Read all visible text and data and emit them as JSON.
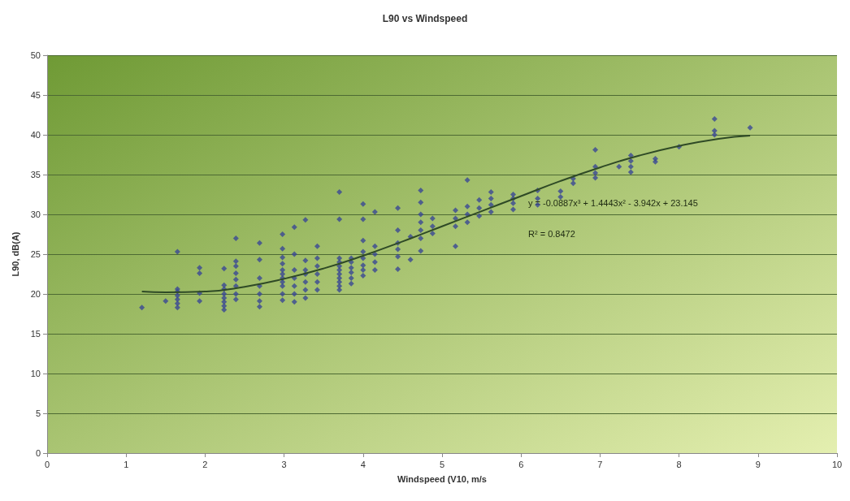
{
  "chart_data": {
    "type": "scatter",
    "title": "L90 vs Windspeed",
    "xlabel": "Windspeed (V10, m/s",
    "ylabel": "L90, dB(A)",
    "xlim": [
      0,
      10
    ],
    "xticks": [
      0,
      1,
      2,
      3,
      4,
      5,
      6,
      7,
      8,
      9,
      10
    ],
    "ylim": [
      0,
      50
    ],
    "yticks": [
      0,
      5,
      10,
      15,
      20,
      25,
      30,
      35,
      40,
      45,
      50
    ],
    "grid": "y",
    "annotations": [
      "y = -0.0887x³ + 1.4443x² - 3.942x + 23.145",
      "R² = 0.8472"
    ],
    "series": [
      {
        "color": "#3a4795",
        "marker": "diamond",
        "x": [
          1.2,
          1.5,
          1.65,
          1.65,
          1.65,
          1.65,
          1.65,
          1.65,
          1.65,
          1.93,
          1.93,
          1.93,
          1.93,
          2.24,
          2.24,
          2.24,
          2.24,
          2.24,
          2.24,
          2.24,
          2.24,
          2.39,
          2.39,
          2.39,
          2.39,
          2.39,
          2.39,
          2.39,
          2.39,
          2.69,
          2.69,
          2.69,
          2.69,
          2.69,
          2.69,
          2.69,
          2.98,
          2.98,
          2.98,
          2.98,
          2.98,
          2.98,
          2.98,
          2.98,
          2.98,
          2.98,
          2.98,
          3.13,
          3.13,
          3.13,
          3.13,
          3.13,
          3.13,
          3.13,
          3.27,
          3.27,
          3.27,
          3.27,
          3.27,
          3.27,
          3.27,
          3.42,
          3.42,
          3.42,
          3.42,
          3.42,
          3.42,
          3.7,
          3.7,
          3.7,
          3.7,
          3.7,
          3.7,
          3.7,
          3.7,
          3.7,
          3.7,
          3.7,
          3.85,
          3.85,
          3.85,
          3.85,
          3.85,
          3.85,
          4.0,
          4.0,
          4.0,
          4.0,
          4.0,
          4.0,
          4.0,
          4.0,
          4.15,
          4.15,
          4.15,
          4.15,
          4.15,
          4.44,
          4.44,
          4.44,
          4.44,
          4.44,
          4.44,
          4.6,
          4.6,
          4.73,
          4.73,
          4.73,
          4.73,
          4.73,
          4.73,
          4.73,
          4.88,
          4.88,
          4.88,
          5.17,
          5.17,
          5.17,
          5.17,
          5.32,
          5.32,
          5.32,
          5.32,
          5.47,
          5.47,
          5.47,
          5.62,
          5.62,
          5.62,
          5.62,
          5.9,
          5.9,
          5.9,
          5.9,
          6.21,
          6.21,
          6.21,
          6.5,
          6.5,
          6.66,
          6.66,
          6.94,
          6.94,
          6.94,
          6.94,
          7.24,
          7.39,
          7.39,
          7.39,
          7.39,
          7.7,
          7.7,
          8.0,
          8.45,
          8.45,
          8.45,
          8.9
        ],
        "values": [
          18.3,
          19.1,
          18.3,
          18.8,
          19.3,
          19.8,
          20.3,
          20.6,
          25.3,
          19.1,
          20.1,
          22.6,
          23.3,
          18.0,
          18.5,
          19.0,
          19.5,
          20.0,
          20.6,
          21.1,
          23.2,
          19.3,
          20.0,
          21.0,
          21.8,
          22.6,
          23.5,
          24.1,
          27.0,
          18.4,
          19.1,
          20.0,
          21.0,
          22.0,
          24.3,
          26.4,
          19.2,
          20.0,
          21.0,
          21.5,
          22.0,
          22.5,
          23.0,
          23.8,
          24.6,
          25.7,
          27.5,
          19.0,
          20.0,
          21.0,
          22.0,
          23.0,
          25.0,
          28.4,
          19.5,
          20.5,
          21.5,
          22.5,
          23.0,
          24.2,
          29.3,
          20.5,
          21.5,
          22.5,
          23.5,
          24.5,
          26.0,
          20.5,
          21.0,
          21.5,
          22.0,
          22.5,
          23.0,
          23.5,
          24.0,
          24.5,
          29.4,
          32.8,
          21.3,
          22.0,
          22.7,
          23.3,
          24.0,
          24.5,
          22.3,
          23.0,
          23.6,
          24.5,
          25.3,
          26.7,
          29.4,
          31.3,
          23.0,
          24.0,
          25.0,
          26.0,
          30.3,
          23.1,
          24.7,
          25.6,
          26.4,
          28.0,
          30.8,
          24.3,
          27.2,
          25.4,
          27.0,
          28.0,
          29.0,
          30.0,
          31.5,
          33.0,
          27.6,
          28.5,
          29.5,
          26.0,
          28.5,
          29.5,
          30.5,
          29.0,
          30.0,
          31.0,
          34.3,
          29.8,
          30.8,
          31.8,
          30.3,
          31.2,
          32.0,
          32.8,
          30.6,
          31.4,
          32.0,
          32.5,
          31.2,
          32.0,
          33.0,
          32.2,
          32.9,
          33.9,
          34.5,
          34.6,
          35.2,
          36.0,
          38.1,
          36.0,
          35.3,
          36.0,
          36.7,
          37.4,
          36.6,
          37.0,
          38.5,
          40.0,
          40.5,
          42.0,
          40.9
        ]
      },
      {
        "type": "line",
        "color": "#2f4a26",
        "marker": "none",
        "line_style": "solid",
        "x": [
          1.2,
          1.5,
          2,
          2.5,
          3,
          3.5,
          4,
          4.5,
          5,
          5.5,
          6,
          6.5,
          7,
          7.5,
          8,
          8.5,
          8.9
        ],
        "values": [
          20.3,
          20.2,
          20.3,
          20.9,
          21.9,
          23.2,
          24.8,
          26.6,
          28.5,
          30.4,
          32.3,
          34.2,
          35.9,
          37.4,
          38.6,
          39.5,
          39.9
        ]
      }
    ]
  }
}
